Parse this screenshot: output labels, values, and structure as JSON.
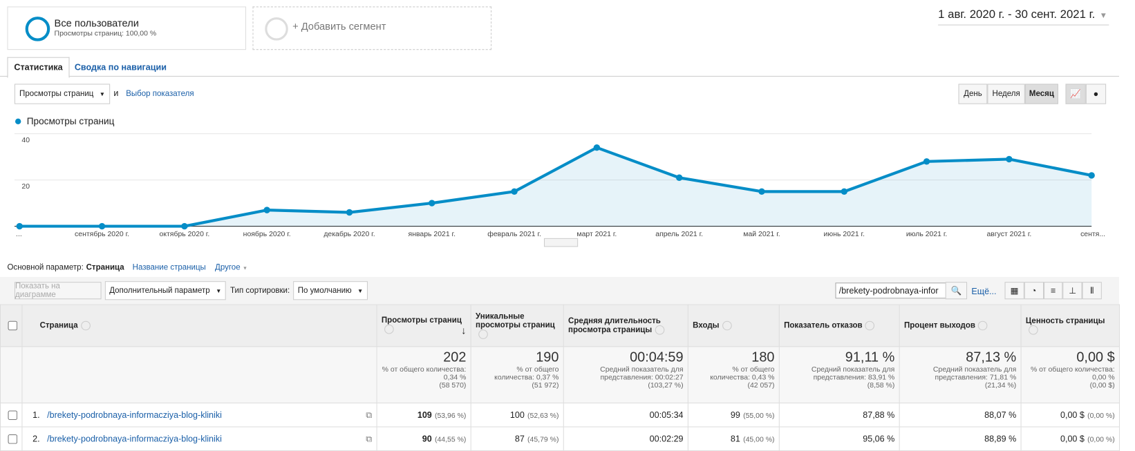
{
  "segments": {
    "active": {
      "name": "Все пользователи",
      "detail": "Просмотры страниц: 100,00 %"
    },
    "add": "+ Добавить сегмент"
  },
  "date_range": "1 авг. 2020 г. - 30 сент. 2021 г.",
  "tabs": [
    "Статистика",
    "Сводка по навигации"
  ],
  "metric_select": "Просмотры страниц",
  "conjunction": "и",
  "metric_picker": "Выбор показателя",
  "granularity": [
    "День",
    "Неделя",
    "Месяц"
  ],
  "chart_data": {
    "type": "line",
    "categories": [
      "...",
      "сентябрь 2020 г.",
      "октябрь 2020 г.",
      "ноябрь 2020 г.",
      "декабрь 2020 г.",
      "январь 2021 г.",
      "февраль 2021 г.",
      "март 2021 г.",
      "апрель 2021 г.",
      "май 2021 г.",
      "июнь 2021 г.",
      "июль 2021 г.",
      "август 2021 г.",
      "сентя..."
    ],
    "series": [
      {
        "name": "Просмотры страниц",
        "color": "#058dc7",
        "values": [
          0,
          0,
          0,
          7,
          6,
          10,
          15,
          34,
          21,
          15,
          15,
          28,
          29,
          22
        ]
      }
    ],
    "ylim": [
      0,
      40
    ],
    "yticks": [
      20,
      40
    ],
    "grid": true,
    "area": true
  },
  "dimension": {
    "label": "Основной параметр:",
    "options": [
      "Страница",
      "Название страницы",
      "Другое"
    ]
  },
  "toolbar": {
    "plot": "Показать на диаграмме",
    "secondary": "Дополнительный параметр",
    "sort_label": "Тип сортировки:",
    "sort": "По умолчанию",
    "search": "/brekety-podrobnaya-infor",
    "more": "Ещё..."
  },
  "table": {
    "columns": [
      "Страница",
      "Просмотры страниц",
      "Уникальные просмотры страниц",
      "Средняя длительность просмотра страницы",
      "Входы",
      "Показатель отказов",
      "Процент выходов",
      "Ценность страницы"
    ],
    "totals": [
      {
        "value": "202",
        "note": "% от общего количества: 0,34 %",
        "total": "(58 570)"
      },
      {
        "value": "190",
        "note": "% от общего количества: 0,37 %",
        "total": "(51 972)"
      },
      {
        "value": "00:04:59",
        "note": "Средний показатель для представления: 00:02:27",
        "total": "(103,27 %)"
      },
      {
        "value": "180",
        "note": "% от общего количества: 0,43 %",
        "total": "(42 057)"
      },
      {
        "value": "91,11 %",
        "note": "Средний показатель для представления: 83,91 %",
        "total": "(8,58 %)"
      },
      {
        "value": "87,13 %",
        "note": "Средний показатель для представления: 71,81 %",
        "total": "(21,34 %)"
      },
      {
        "value": "0,00 $",
        "note": "% от общего количества: 0,00 %",
        "total": "(0,00 $)"
      }
    ],
    "rows": [
      {
        "index": "1.",
        "page": "/brekety-podrobnaya-informacziya-blog-kliniki",
        "cells": [
          [
            "109",
            "(53,96 %)"
          ],
          [
            "100",
            "(52,63 %)"
          ],
          [
            "00:05:34"
          ],
          [
            "99",
            "(55,00 %)"
          ],
          [
            "87,88 %"
          ],
          [
            "88,07 %"
          ],
          [
            "0,00 $",
            "(0,00 %)"
          ]
        ]
      },
      {
        "index": "2.",
        "page": "/brekety-podrobnaya-informacziya-blog-kliniki",
        "cells": [
          [
            "90",
            "(44,55 %)"
          ],
          [
            "87",
            "(45,79 %)"
          ],
          [
            "00:02:29"
          ],
          [
            "81",
            "(45,00 %)"
          ],
          [
            "95,06 %"
          ],
          [
            "88,89 %"
          ],
          [
            "0,00 $",
            "(0,00 %)"
          ]
        ]
      }
    ]
  }
}
